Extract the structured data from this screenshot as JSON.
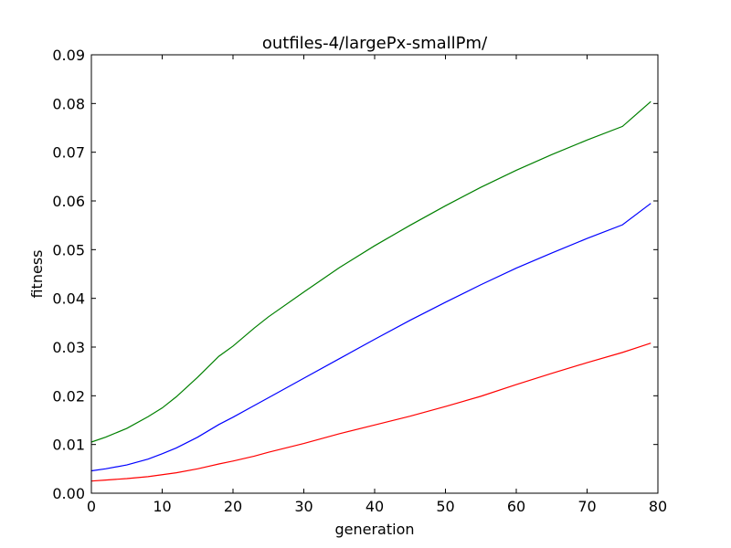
{
  "chart_data": {
    "type": "line",
    "title": "outfiles-4/largePx-smallPm/",
    "xlabel": "generation",
    "ylabel": "fitness",
    "xlim": [
      0,
      80
    ],
    "ylim": [
      0,
      0.09
    ],
    "xticks": [
      "0",
      "10",
      "20",
      "30",
      "40",
      "50",
      "60",
      "70",
      "80"
    ],
    "yticks": [
      "0.00",
      "0.01",
      "0.02",
      "0.03",
      "0.04",
      "0.05",
      "0.06",
      "0.07",
      "0.08",
      "0.09"
    ],
    "grid": false,
    "x": [
      0,
      2,
      5,
      8,
      10,
      12,
      15,
      18,
      20,
      23,
      25,
      30,
      35,
      40,
      45,
      50,
      55,
      60,
      65,
      70,
      75,
      79
    ],
    "series": [
      {
        "color": "#008000",
        "values": [
          0.0105,
          0.0115,
          0.0133,
          0.0157,
          0.0175,
          0.0198,
          0.0238,
          0.0281,
          0.0302,
          0.0339,
          0.0362,
          0.0413,
          0.0463,
          0.0508,
          0.055,
          0.059,
          0.0628,
          0.0663,
          0.0695,
          0.0725,
          0.0753,
          0.0804
        ]
      },
      {
        "color": "#0000ff",
        "values": [
          0.0046,
          0.005,
          0.0058,
          0.007,
          0.0081,
          0.0093,
          0.0115,
          0.0141,
          0.0156,
          0.018,
          0.0196,
          0.0236,
          0.0276,
          0.0316,
          0.0355,
          0.0392,
          0.0428,
          0.0462,
          0.0493,
          0.0523,
          0.0551,
          0.0595
        ]
      },
      {
        "color": "#ff0000",
        "values": [
          0.0025,
          0.0027,
          0.003,
          0.0034,
          0.0038,
          0.0042,
          0.005,
          0.006,
          0.0066,
          0.0076,
          0.0084,
          0.0102,
          0.0122,
          0.014,
          0.0158,
          0.0178,
          0.0199,
          0.0223,
          0.0246,
          0.0268,
          0.0289,
          0.0308
        ]
      }
    ]
  }
}
